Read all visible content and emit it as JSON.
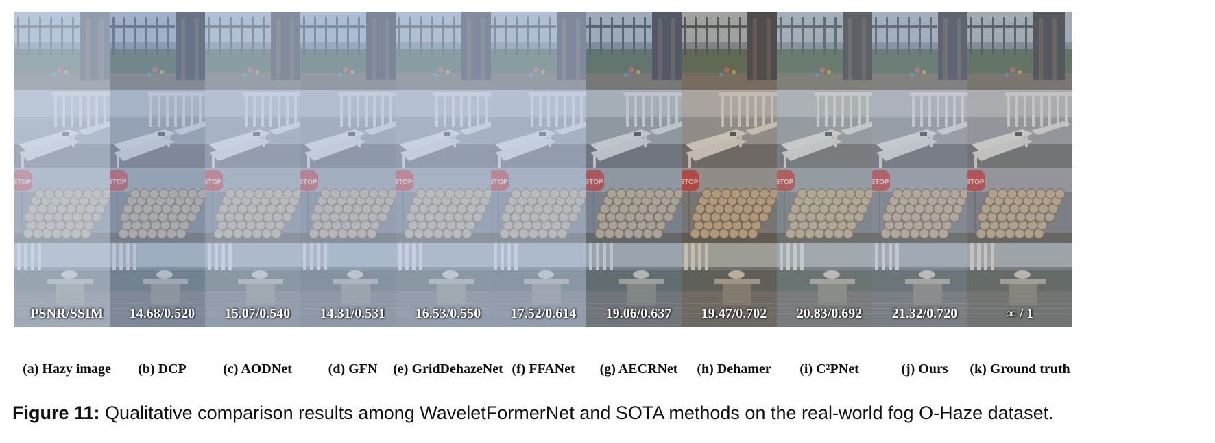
{
  "columns": [
    {
      "label": "(a) Hazy image",
      "metric": "PSNR/SSIM",
      "tone": {
        "haze": 0.55,
        "tint": "#7f96b3",
        "warm": 0.0
      }
    },
    {
      "label": "(b) DCP",
      "metric": "14.68/0.520",
      "tone": {
        "haze": 0.35,
        "tint": "#3d5a86",
        "warm": 0.0
      }
    },
    {
      "label": "(c) AODNet",
      "metric": "15.07/0.540",
      "tone": {
        "haze": 0.45,
        "tint": "#6f87aa",
        "warm": 0.0
      }
    },
    {
      "label": "(d) GFN",
      "metric": "14.31/0.531",
      "tone": {
        "haze": 0.42,
        "tint": "#637fa6",
        "warm": 0.0
      }
    },
    {
      "label": "(e) GridDehazeNet",
      "metric": "16.53/0.550",
      "tone": {
        "haze": 0.45,
        "tint": "#6d86aa",
        "warm": 0.0
      }
    },
    {
      "label": "(f) FFANet",
      "metric": "17.52/0.614",
      "tone": {
        "haze": 0.44,
        "tint": "#6a84a8",
        "warm": 0.0
      }
    },
    {
      "label": "(g) AECRNet",
      "metric": "19.06/0.637",
      "tone": {
        "haze": 0.15,
        "tint": "#5e6d7e",
        "warm": 0.1
      }
    },
    {
      "label": "(h) Dehamer",
      "metric": "19.47/0.702",
      "tone": {
        "haze": 0.08,
        "tint": "#6b6258",
        "warm": 0.4
      }
    },
    {
      "label": "(i) C²PNet",
      "metric": "20.83/0.692",
      "tone": {
        "haze": 0.18,
        "tint": "#6d7a78",
        "warm": 0.15
      }
    },
    {
      "label": "(j) Ours",
      "metric": "21.32/0.720",
      "tone": {
        "haze": 0.2,
        "tint": "#6c7889",
        "warm": 0.15
      }
    },
    {
      "label": "(k) Ground truth",
      "metric": "∞ / 1",
      "tone": {
        "haze": 0.12,
        "tint": "#6f7378",
        "warm": 0.25
      }
    }
  ],
  "caption": {
    "number": "Figure 11:",
    "text": " Qualitative comparison results among WaveletFormerNet and SOTA methods on the real-world fog O-Haze dataset."
  },
  "sign_text": "STOP"
}
